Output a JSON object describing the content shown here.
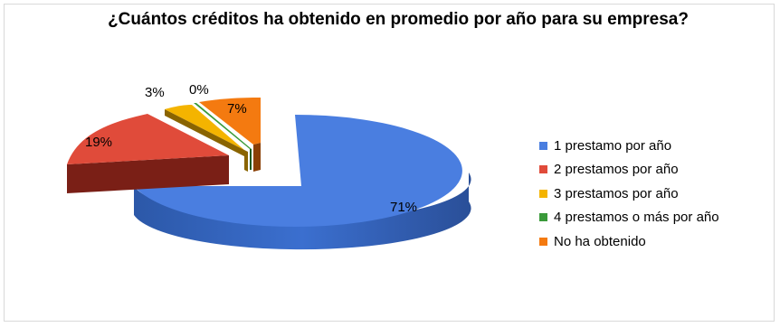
{
  "chart_data": {
    "type": "pie",
    "title": "¿Cuántos créditos ha obtenido en promedio por año para su empresa?",
    "slices": [
      {
        "name": "1 prestamo por año",
        "value": 71,
        "label": "71%",
        "color": "#4a7ee0",
        "side": "#2f5cb3"
      },
      {
        "name": "2 prestamos por año",
        "value": 19,
        "label": "19%",
        "color": "#e04b3a",
        "side": "#7a1f16"
      },
      {
        "name": "3 prestamos por año",
        "value": 3,
        "label": "3%",
        "color": "#f4b400",
        "side": "#8a6400"
      },
      {
        "name": "4 prestamos o más por año",
        "value": 0,
        "label": "0%",
        "color": "#3a9a3a",
        "side": "#1f5a1f"
      },
      {
        "name": "No ha obtenido",
        "value": 7,
        "label": "7%",
        "color": "#f47a10",
        "side": "#8a3f05"
      }
    ],
    "legend_position": "right"
  }
}
